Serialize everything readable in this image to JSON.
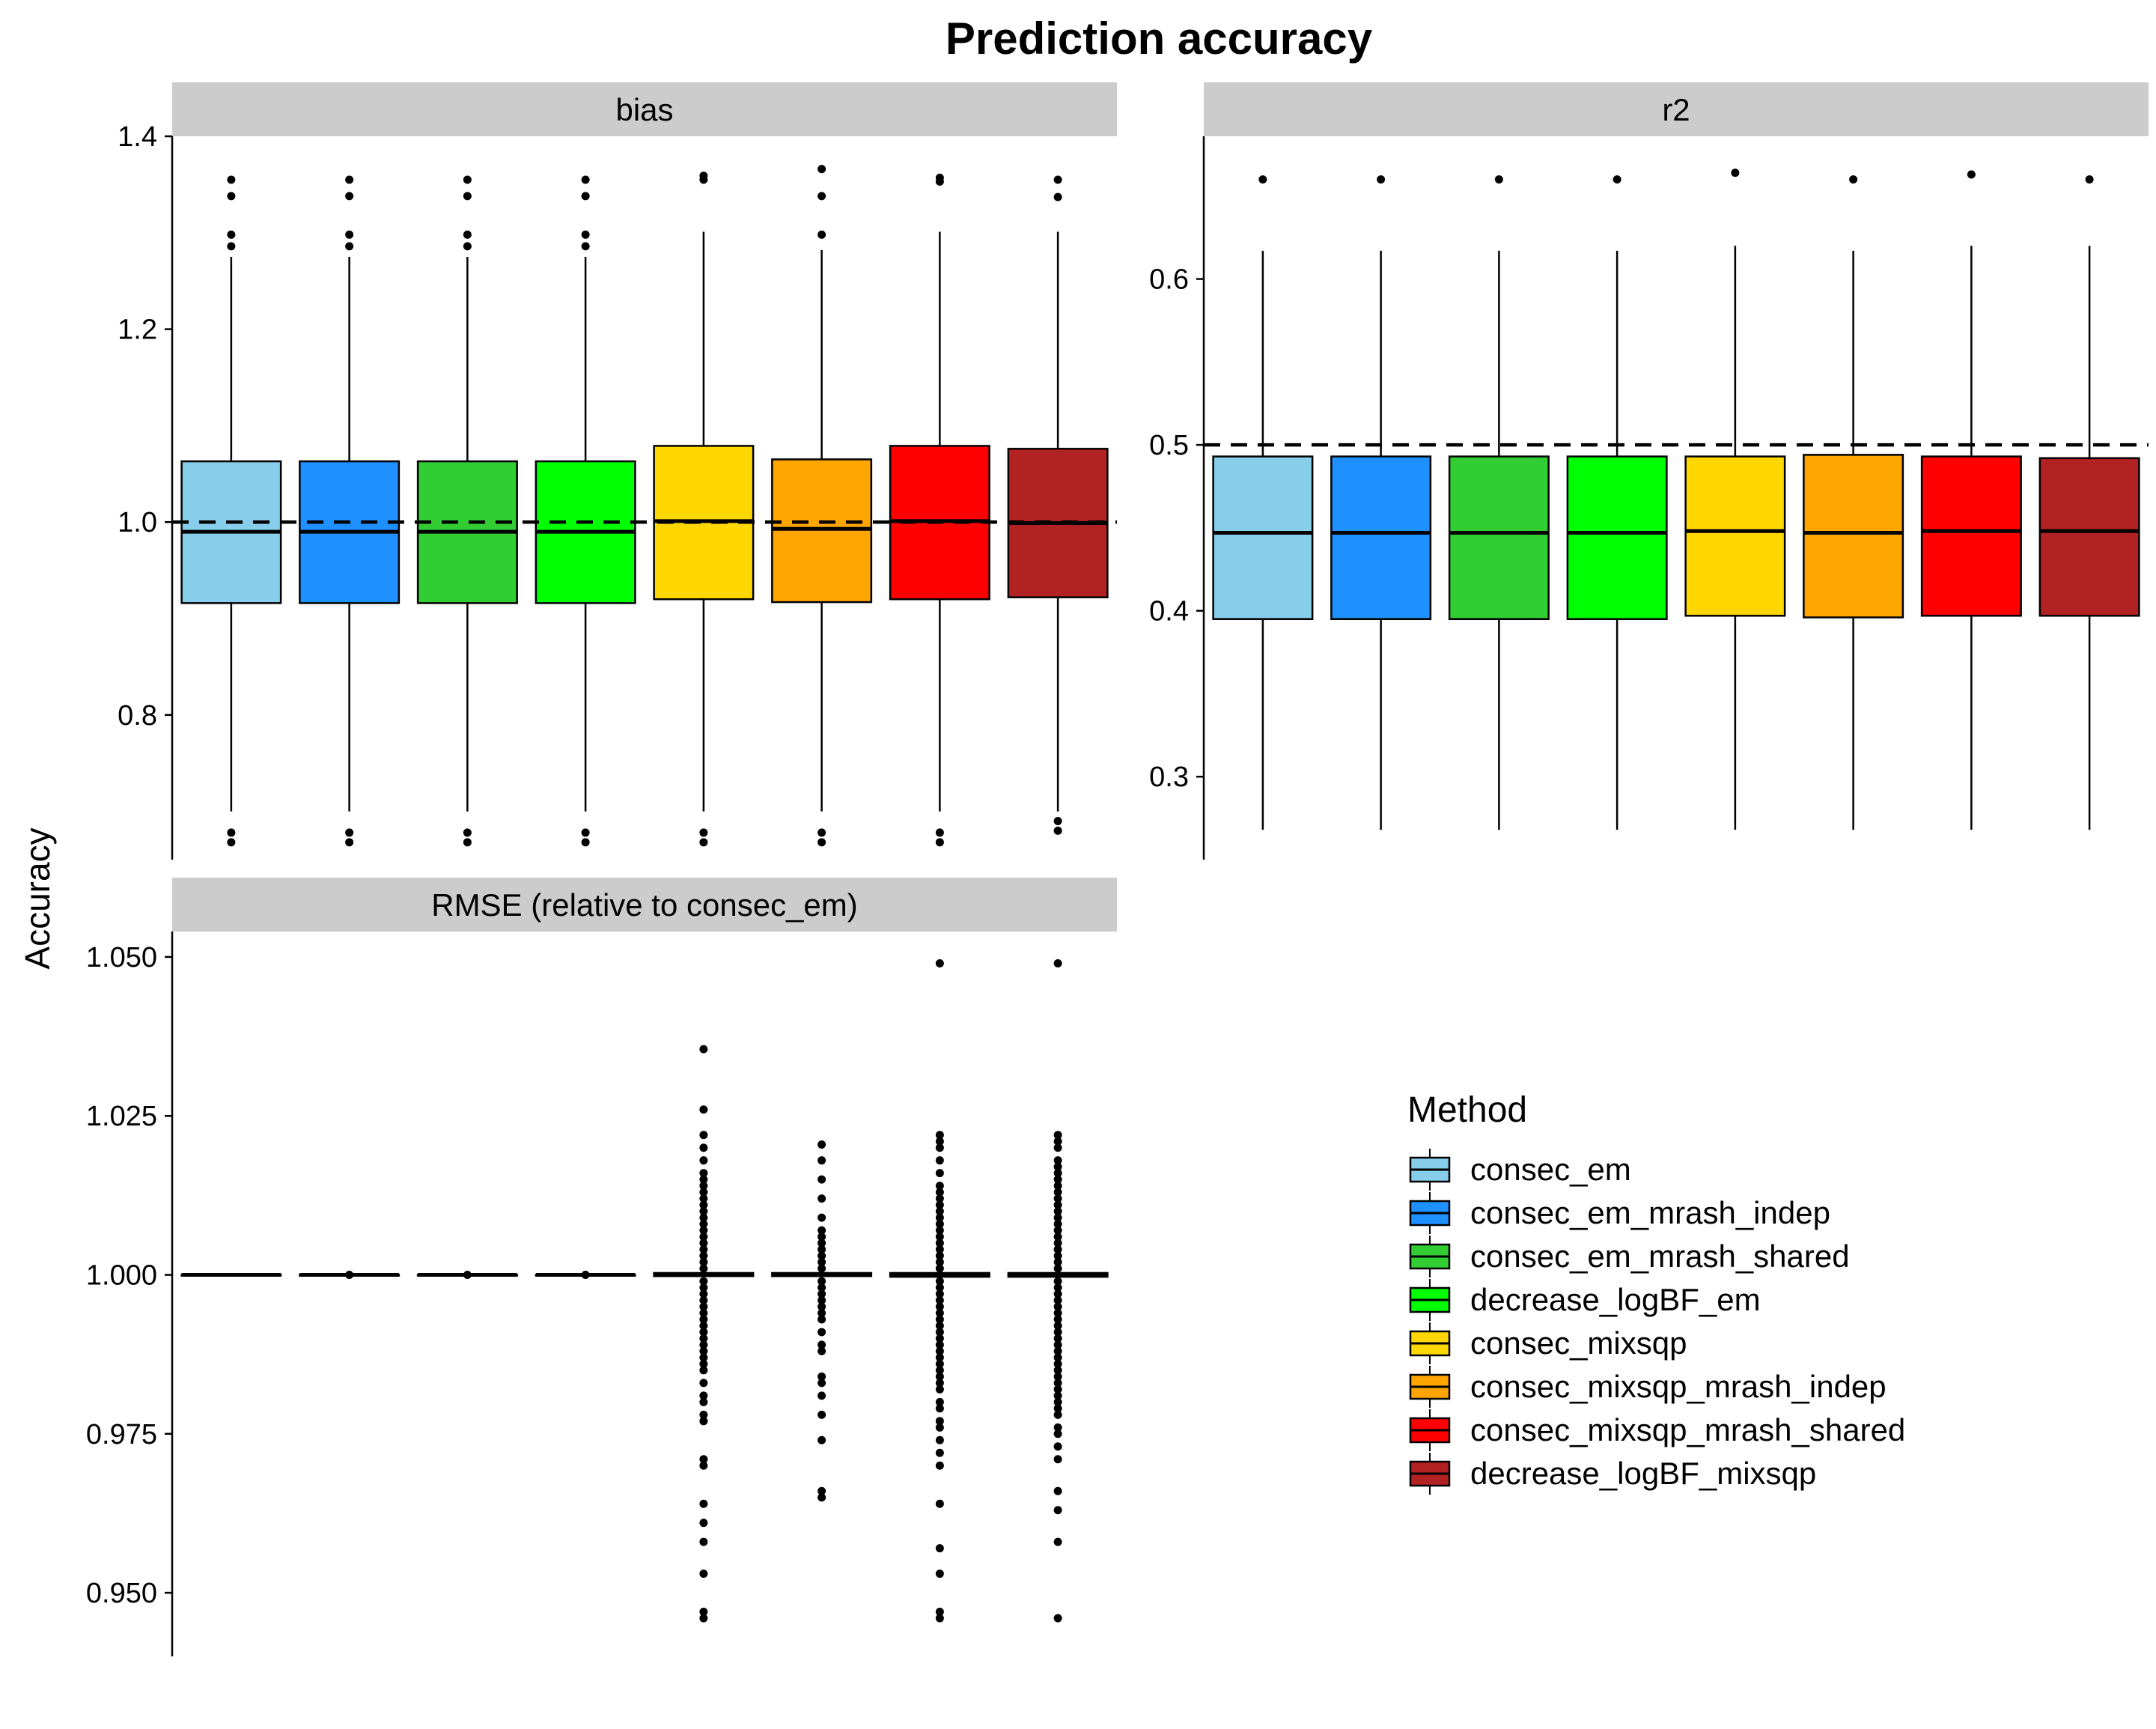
{
  "chart_data": {
    "type": "box",
    "title": "Prediction accuracy",
    "ylabel": "Accuracy",
    "legend": {
      "title": "Method",
      "placement": "right",
      "entries": [
        {
          "label": "consec_em",
          "color": "#87CEEB"
        },
        {
          "label": "consec_em_mrash_indep",
          "color": "#1E90FF"
        },
        {
          "label": "consec_em_mrash_shared",
          "color": "#32CD32"
        },
        {
          "label": "decrease_logBF_em",
          "color": "#00FF00"
        },
        {
          "label": "consec_mixsqp",
          "color": "#FFD700"
        },
        {
          "label": "consec_mixsqp_mrash_indep",
          "color": "#FFA500"
        },
        {
          "label": "consec_mixsqp_mrash_shared",
          "color": "#FF0000"
        },
        {
          "label": "decrease_logBF_mixsqp",
          "color": "#B22222"
        }
      ]
    },
    "panels": [
      {
        "name": "bias",
        "ylim": [
          0.65,
          1.4
        ],
        "ticks": [
          "0.8",
          "1.0",
          "1.2",
          "1.4"
        ],
        "reference_line": 1.0,
        "boxes": [
          {
            "q1": 0.916,
            "median": 0.99,
            "q3": 1.063,
            "whisker_low": 0.7,
            "whisker_high": 1.275,
            "outliers": [
              0.668,
              0.678,
              1.286,
              1.298,
              1.338,
              1.355
            ]
          },
          {
            "q1": 0.916,
            "median": 0.99,
            "q3": 1.063,
            "whisker_low": 0.7,
            "whisker_high": 1.275,
            "outliers": [
              0.668,
              0.678,
              1.286,
              1.298,
              1.338,
              1.355
            ]
          },
          {
            "q1": 0.916,
            "median": 0.99,
            "q3": 1.063,
            "whisker_low": 0.7,
            "whisker_high": 1.275,
            "outliers": [
              0.668,
              0.678,
              1.286,
              1.298,
              1.338,
              1.355
            ]
          },
          {
            "q1": 0.916,
            "median": 0.99,
            "q3": 1.063,
            "whisker_low": 0.7,
            "whisker_high": 1.275,
            "outliers": [
              0.668,
              0.678,
              1.286,
              1.298,
              1.338,
              1.355
            ]
          },
          {
            "q1": 0.92,
            "median": 1.001,
            "q3": 1.079,
            "whisker_low": 0.7,
            "whisker_high": 1.301,
            "outliers": [
              0.668,
              0.678,
              1.355,
              1.359
            ]
          },
          {
            "q1": 0.917,
            "median": 0.993,
            "q3": 1.065,
            "whisker_low": 0.7,
            "whisker_high": 1.282,
            "outliers": [
              0.668,
              0.678,
              1.298,
              1.338,
              1.366
            ]
          },
          {
            "q1": 0.92,
            "median": 1.001,
            "q3": 1.079,
            "whisker_low": 0.7,
            "whisker_high": 1.301,
            "outliers": [
              0.668,
              0.678,
              1.353,
              1.357
            ]
          },
          {
            "q1": 0.922,
            "median": 0.999,
            "q3": 1.076,
            "whisker_low": 0.7,
            "whisker_high": 1.301,
            "outliers": [
              0.68,
              0.69,
              1.337,
              1.355
            ]
          }
        ]
      },
      {
        "name": "r2",
        "ylim": [
          0.25,
          0.686
        ],
        "ticks": [
          "0.3",
          "0.4",
          "0.5",
          "0.6"
        ],
        "reference_line": 0.5,
        "boxes": [
          {
            "q1": 0.395,
            "median": 0.447,
            "q3": 0.493,
            "whisker_low": 0.268,
            "whisker_high": 0.617,
            "outliers": [
              0.66
            ]
          },
          {
            "q1": 0.395,
            "median": 0.447,
            "q3": 0.493,
            "whisker_low": 0.268,
            "whisker_high": 0.617,
            "outliers": [
              0.66
            ]
          },
          {
            "q1": 0.395,
            "median": 0.447,
            "q3": 0.493,
            "whisker_low": 0.268,
            "whisker_high": 0.617,
            "outliers": [
              0.66
            ]
          },
          {
            "q1": 0.395,
            "median": 0.447,
            "q3": 0.493,
            "whisker_low": 0.268,
            "whisker_high": 0.617,
            "outliers": [
              0.66
            ]
          },
          {
            "q1": 0.397,
            "median": 0.448,
            "q3": 0.493,
            "whisker_low": 0.268,
            "whisker_high": 0.62,
            "outliers": [
              0.664
            ]
          },
          {
            "q1": 0.396,
            "median": 0.447,
            "q3": 0.494,
            "whisker_low": 0.268,
            "whisker_high": 0.617,
            "outliers": [
              0.66
            ]
          },
          {
            "q1": 0.397,
            "median": 0.448,
            "q3": 0.493,
            "whisker_low": 0.268,
            "whisker_high": 0.62,
            "outliers": [
              0.663
            ]
          },
          {
            "q1": 0.397,
            "median": 0.448,
            "q3": 0.492,
            "whisker_low": 0.268,
            "whisker_high": 0.62,
            "outliers": [
              0.66
            ]
          }
        ]
      },
      {
        "name": "RMSE (relative to consec_em)",
        "ylim": [
          0.94,
          1.054
        ],
        "ticks": [
          "0.950",
          "0.975",
          "1.000",
          "1.025",
          "1.050"
        ],
        "reference_line": null,
        "boxes": [
          {
            "q1": 1.0,
            "median": 1.0,
            "q3": 1.0,
            "whisker_low": 1.0,
            "whisker_high": 1.0,
            "outliers": []
          },
          {
            "q1": 1.0,
            "median": 1.0,
            "q3": 1.0,
            "whisker_low": 1.0,
            "whisker_high": 1.0,
            "outliers": [
              1.0
            ]
          },
          {
            "q1": 1.0,
            "median": 1.0,
            "q3": 1.0,
            "whisker_low": 1.0,
            "whisker_high": 1.0,
            "outliers": [
              1.0
            ]
          },
          {
            "q1": 1.0,
            "median": 1.0,
            "q3": 1.0,
            "whisker_low": 1.0,
            "whisker_high": 1.0,
            "outliers": [
              1.0
            ]
          },
          {
            "q1": 0.9998,
            "median": 1.0,
            "q3": 1.0003,
            "whisker_low": 0.9995,
            "whisker_high": 1.0006,
            "outliers": [
              0.946,
              0.947,
              0.953,
              0.958,
              0.961,
              0.964,
              0.97,
              0.971,
              0.977,
              0.978,
              0.98,
              0.981,
              0.983,
              0.985,
              0.986,
              0.987,
              0.988,
              0.989,
              0.99,
              0.991,
              0.992,
              0.993,
              0.994,
              0.995,
              0.996,
              0.997,
              0.998,
              0.999,
              1.001,
              1.002,
              1.003,
              1.004,
              1.005,
              1.006,
              1.007,
              1.008,
              1.009,
              1.01,
              1.011,
              1.012,
              1.013,
              1.014,
              1.015,
              1.016,
              1.018,
              1.02,
              1.022,
              1.026,
              1.0355
            ]
          },
          {
            "q1": 0.9998,
            "median": 1.0,
            "q3": 1.0003,
            "whisker_low": 0.9995,
            "whisker_high": 1.0006,
            "outliers": [
              0.965,
              0.966,
              0.974,
              0.978,
              0.981,
              0.983,
              0.984,
              0.988,
              0.989,
              0.991,
              0.993,
              0.994,
              0.995,
              0.996,
              0.997,
              0.998,
              0.999,
              1.001,
              1.002,
              1.003,
              1.004,
              1.005,
              1.006,
              1.007,
              1.009,
              1.012,
              1.015,
              1.018,
              1.0205
            ]
          },
          {
            "q1": 0.9997,
            "median": 1.0,
            "q3": 1.0003,
            "whisker_low": 0.9994,
            "whisker_high": 1.0006,
            "outliers": [
              0.946,
              0.947,
              0.953,
              0.957,
              0.964,
              0.97,
              0.972,
              0.974,
              0.976,
              0.977,
              0.979,
              0.98,
              0.982,
              0.983,
              0.984,
              0.985,
              0.986,
              0.987,
              0.988,
              0.989,
              0.99,
              0.991,
              0.992,
              0.993,
              0.994,
              0.995,
              0.996,
              0.997,
              0.998,
              0.999,
              1.001,
              1.002,
              1.003,
              1.004,
              1.005,
              1.006,
              1.007,
              1.008,
              1.009,
              1.01,
              1.011,
              1.012,
              1.013,
              1.014,
              1.016,
              1.018,
              1.02,
              1.021,
              1.022,
              1.049
            ]
          },
          {
            "q1": 0.9997,
            "median": 1.0,
            "q3": 1.0003,
            "whisker_low": 0.9994,
            "whisker_high": 1.0006,
            "outliers": [
              0.946,
              0.958,
              0.963,
              0.966,
              0.971,
              0.973,
              0.975,
              0.976,
              0.978,
              0.979,
              0.98,
              0.981,
              0.982,
              0.983,
              0.984,
              0.985,
              0.986,
              0.987,
              0.988,
              0.989,
              0.99,
              0.991,
              0.992,
              0.993,
              0.994,
              0.995,
              0.996,
              0.997,
              0.998,
              0.999,
              1.001,
              1.002,
              1.003,
              1.004,
              1.005,
              1.006,
              1.007,
              1.008,
              1.009,
              1.01,
              1.011,
              1.012,
              1.013,
              1.014,
              1.015,
              1.016,
              1.017,
              1.018,
              1.02,
              1.021,
              1.022,
              1.049
            ]
          }
        ]
      }
    ]
  }
}
